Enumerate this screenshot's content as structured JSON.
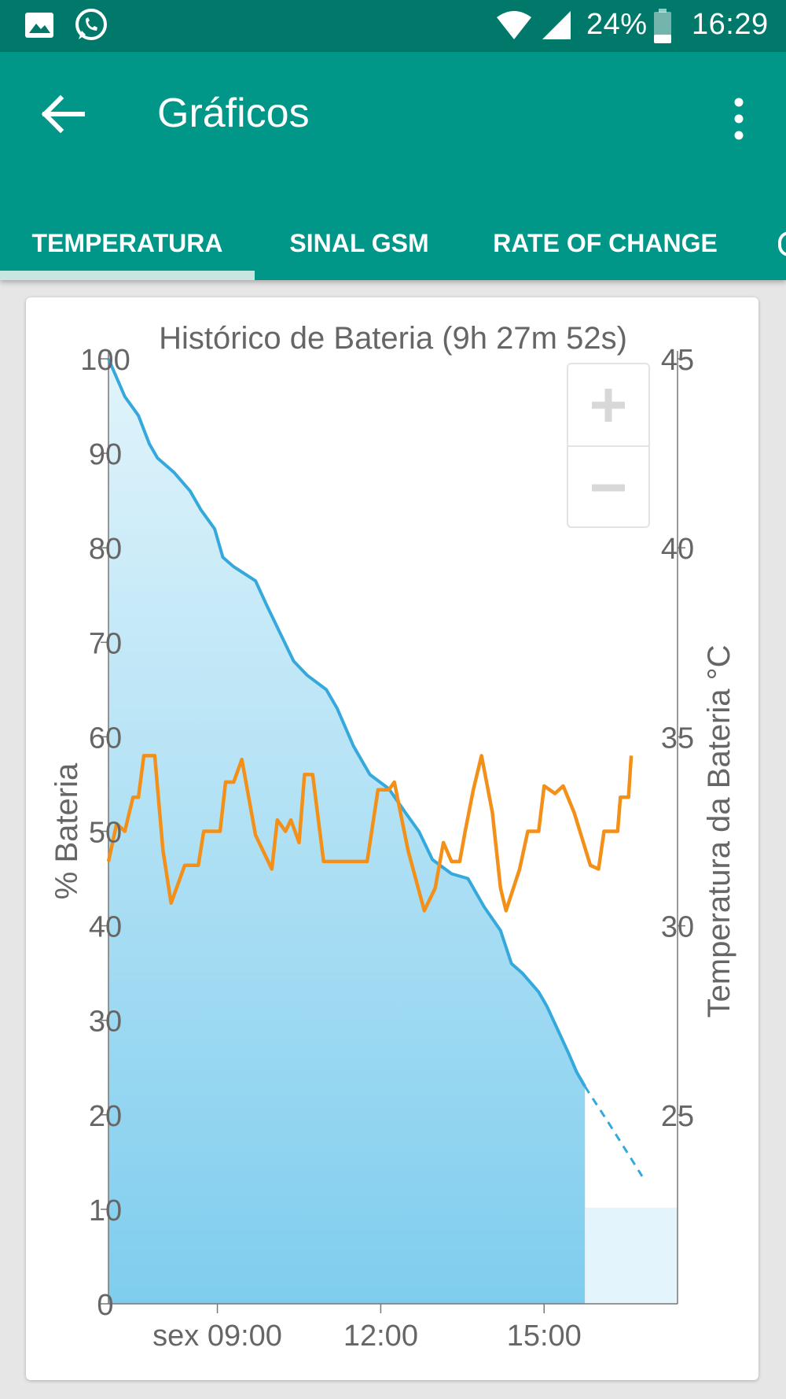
{
  "status_bar": {
    "battery_percent": "24%",
    "time": "16:29",
    "icons": [
      "image-icon",
      "whatsapp-icon",
      "wifi-icon",
      "signal-icon",
      "battery-icon"
    ]
  },
  "app_bar": {
    "title": "Gráficos",
    "color": "#009688",
    "status_color": "#00796b"
  },
  "tabs": [
    {
      "label": "TEMPERATURA",
      "selected": true
    },
    {
      "label": "SINAL GSM",
      "selected": false
    },
    {
      "label": "RATE OF CHANGE",
      "selected": false
    }
  ],
  "chart_data": {
    "type": "area",
    "title": "Histórico de Bateria (9h 27m 52s)",
    "ylabel": "% Bateria",
    "y2label": "Temperatura da Bateria °C",
    "ylim": [
      0,
      100
    ],
    "y2lim": [
      20,
      45
    ],
    "yticks": [
      "0",
      "10",
      "20",
      "30",
      "40",
      "50",
      "60",
      "70",
      "80",
      "90",
      "100"
    ],
    "y2ticks": [
      "25",
      "30",
      "35",
      "40",
      "45"
    ],
    "xticks": [
      {
        "label": "sex 09:00",
        "x": 9
      },
      {
        "label": "12:00",
        "x": 12
      },
      {
        "label": "15:00",
        "x": 15
      }
    ],
    "xlim": [
      7.0,
      17.45
    ],
    "series": [
      {
        "axis": "left",
        "color": "#35a8dc",
        "points": [
          [
            7.0,
            100
          ],
          [
            7.3,
            96
          ],
          [
            7.55,
            94
          ],
          [
            7.75,
            91
          ],
          [
            7.9,
            89.5
          ],
          [
            8.2,
            88
          ],
          [
            8.5,
            86
          ],
          [
            8.7,
            84
          ],
          [
            8.95,
            82
          ],
          [
            9.1,
            79
          ],
          [
            9.3,
            78
          ],
          [
            9.7,
            76.5
          ],
          [
            9.9,
            74
          ],
          [
            10.15,
            71
          ],
          [
            10.4,
            68
          ],
          [
            10.65,
            66.5
          ],
          [
            11.0,
            65
          ],
          [
            11.2,
            63
          ],
          [
            11.5,
            59
          ],
          [
            11.8,
            56
          ],
          [
            12.15,
            54.5
          ],
          [
            12.45,
            52
          ],
          [
            12.7,
            50
          ],
          [
            12.95,
            47
          ],
          [
            13.3,
            45.5
          ],
          [
            13.6,
            45
          ],
          [
            13.9,
            42
          ],
          [
            14.2,
            39.5
          ],
          [
            14.4,
            36
          ],
          [
            14.6,
            35
          ],
          [
            14.9,
            33
          ],
          [
            15.05,
            31.5
          ],
          [
            15.25,
            29
          ],
          [
            15.45,
            26.5
          ],
          [
            15.6,
            24.5
          ],
          [
            15.75,
            23
          ]
        ]
      },
      {
        "axis": "left",
        "style": "dashed",
        "color": "#35a8dc",
        "points": [
          [
            15.75,
            23
          ],
          [
            16.2,
            19
          ],
          [
            16.8,
            13.5
          ]
        ]
      },
      {
        "axis": "right",
        "color": "#f39019",
        "points": [
          [
            7.0,
            31.7
          ],
          [
            7.15,
            32.7
          ],
          [
            7.3,
            32.5
          ],
          [
            7.45,
            33.4
          ],
          [
            7.55,
            33.4
          ],
          [
            7.65,
            34.5
          ],
          [
            7.85,
            34.5
          ],
          [
            8.0,
            32.0
          ],
          [
            8.15,
            30.6
          ],
          [
            8.4,
            31.6
          ],
          [
            8.65,
            31.6
          ],
          [
            8.75,
            32.5
          ],
          [
            9.05,
            32.5
          ],
          [
            9.15,
            33.8
          ],
          [
            9.3,
            33.8
          ],
          [
            9.45,
            34.4
          ],
          [
            9.7,
            32.4
          ],
          [
            10.0,
            31.5
          ],
          [
            10.1,
            32.8
          ],
          [
            10.25,
            32.5
          ],
          [
            10.35,
            32.8
          ],
          [
            10.5,
            32.2
          ],
          [
            10.6,
            34.0
          ],
          [
            10.75,
            34.0
          ],
          [
            10.95,
            31.7
          ],
          [
            11.5,
            31.7
          ],
          [
            11.75,
            31.7
          ],
          [
            11.95,
            33.6
          ],
          [
            12.15,
            33.6
          ],
          [
            12.25,
            33.8
          ],
          [
            12.5,
            32.0
          ],
          [
            12.8,
            30.4
          ],
          [
            13.0,
            31.0
          ],
          [
            13.15,
            32.2
          ],
          [
            13.3,
            31.7
          ],
          [
            13.45,
            31.7
          ],
          [
            13.55,
            32.5
          ],
          [
            13.7,
            33.6
          ],
          [
            13.85,
            34.5
          ],
          [
            14.05,
            33.0
          ],
          [
            14.2,
            31.0
          ],
          [
            14.3,
            30.4
          ],
          [
            14.55,
            31.5
          ],
          [
            14.7,
            32.5
          ],
          [
            14.9,
            32.5
          ],
          [
            15.0,
            33.7
          ],
          [
            15.2,
            33.5
          ],
          [
            15.35,
            33.7
          ],
          [
            15.55,
            33.0
          ],
          [
            15.85,
            31.6
          ],
          [
            16.0,
            31.5
          ],
          [
            16.1,
            32.5
          ],
          [
            16.35,
            32.5
          ],
          [
            16.4,
            33.4
          ],
          [
            16.55,
            33.4
          ],
          [
            16.6,
            34.5
          ]
        ]
      }
    ]
  }
}
